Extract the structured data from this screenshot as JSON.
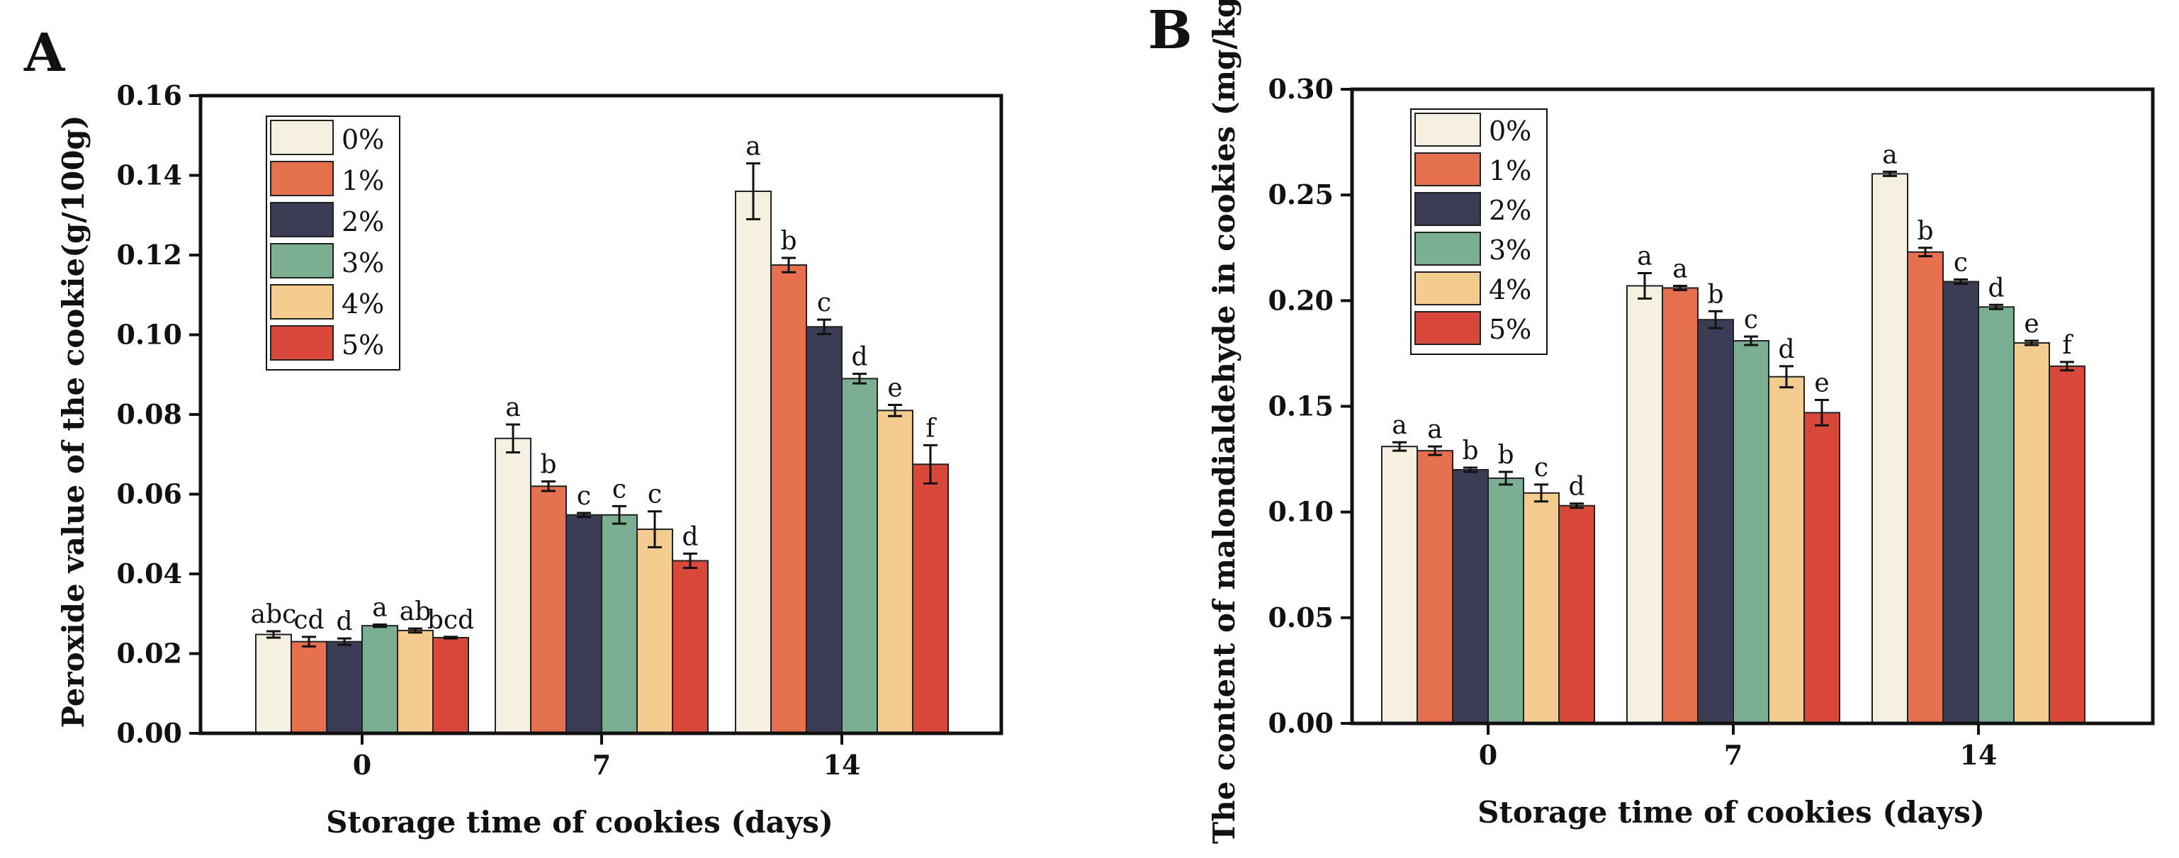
{
  "colors": {
    "series": [
      "#F4F0E2",
      "#E67050",
      "#3A3D55",
      "#7BAE92",
      "#F3CD8F",
      "#D9493A"
    ],
    "axis": "#111111",
    "bar_edge": "#222222",
    "background": "#ffffff"
  },
  "chart_data": [
    {
      "type": "bar",
      "panel_label": "A",
      "xlabel": "Storage time of cookies (days)",
      "ylabel": "Peroxide value of the cookie(g/100g)",
      "categories": [
        "0",
        "7",
        "14"
      ],
      "ylim": [
        0,
        0.16
      ],
      "yticks": [
        "0.00",
        "0.02",
        "0.04",
        "0.06",
        "0.08",
        "0.10",
        "0.12",
        "0.14",
        "0.16"
      ],
      "legend_placement": "top-left",
      "grid": false,
      "series": [
        {
          "name": "0%",
          "values": [
            0.0248,
            0.074,
            0.136
          ],
          "errors": [
            0.0008,
            0.0035,
            0.007
          ],
          "labels": [
            "abc",
            "a",
            "a"
          ]
        },
        {
          "name": "1%",
          "values": [
            0.023,
            0.062,
            0.1175
          ],
          "errors": [
            0.0012,
            0.0012,
            0.0018
          ],
          "labels": [
            "cd",
            "b",
            "b"
          ]
        },
        {
          "name": "2%",
          "values": [
            0.023,
            0.0548,
            0.102
          ],
          "errors": [
            0.0008,
            0.0005,
            0.0018
          ],
          "labels": [
            "d",
            "c",
            "c"
          ]
        },
        {
          "name": "3%",
          "values": [
            0.027,
            0.0548,
            0.089
          ],
          "errors": [
            0.0003,
            0.0022,
            0.0012
          ],
          "labels": [
            "a",
            "c",
            "d"
          ]
        },
        {
          "name": "4%",
          "values": [
            0.0258,
            0.0512,
            0.081
          ],
          "errors": [
            0.0005,
            0.0045,
            0.0014
          ],
          "labels": [
            "ab",
            "c",
            "e"
          ]
        },
        {
          "name": "5%",
          "values": [
            0.024,
            0.0433,
            0.0675
          ],
          "errors": [
            0.0002,
            0.0018,
            0.0048
          ],
          "labels": [
            "bcd",
            "d",
            "f"
          ]
        }
      ]
    },
    {
      "type": "bar",
      "panel_label": "B",
      "xlabel": "Storage time of cookies (days)",
      "ylabel": "The content of malondialdehyde in cookies (mg/kg)",
      "categories": [
        "0",
        "7",
        "14"
      ],
      "ylim": [
        0,
        0.3
      ],
      "yticks": [
        "0.00",
        "0.05",
        "0.10",
        "0.15",
        "0.20",
        "0.25",
        "0.30"
      ],
      "legend_placement": "top-left",
      "grid": false,
      "series": [
        {
          "name": "0%",
          "values": [
            0.131,
            0.207,
            0.26
          ],
          "errors": [
            0.002,
            0.006,
            0.001
          ],
          "labels": [
            "a",
            "a",
            "a"
          ]
        },
        {
          "name": "1%",
          "values": [
            0.129,
            0.206,
            0.223
          ],
          "errors": [
            0.002,
            0.001,
            0.002
          ],
          "labels": [
            "a",
            "a",
            "b"
          ]
        },
        {
          "name": "2%",
          "values": [
            0.12,
            0.191,
            0.209
          ],
          "errors": [
            0.001,
            0.004,
            0.001
          ],
          "labels": [
            "b",
            "b",
            "c"
          ]
        },
        {
          "name": "3%",
          "values": [
            0.116,
            0.181,
            0.197
          ],
          "errors": [
            0.003,
            0.002,
            0.001
          ],
          "labels": [
            "b",
            "c",
            "d"
          ]
        },
        {
          "name": "4%",
          "values": [
            0.109,
            0.164,
            0.18
          ],
          "errors": [
            0.004,
            0.005,
            0.001
          ],
          "labels": [
            "c",
            "d",
            "e"
          ]
        },
        {
          "name": "5%",
          "values": [
            0.103,
            0.147,
            0.169
          ],
          "errors": [
            0.001,
            0.006,
            0.002
          ],
          "labels": [
            "d",
            "e",
            "f"
          ]
        }
      ]
    }
  ]
}
